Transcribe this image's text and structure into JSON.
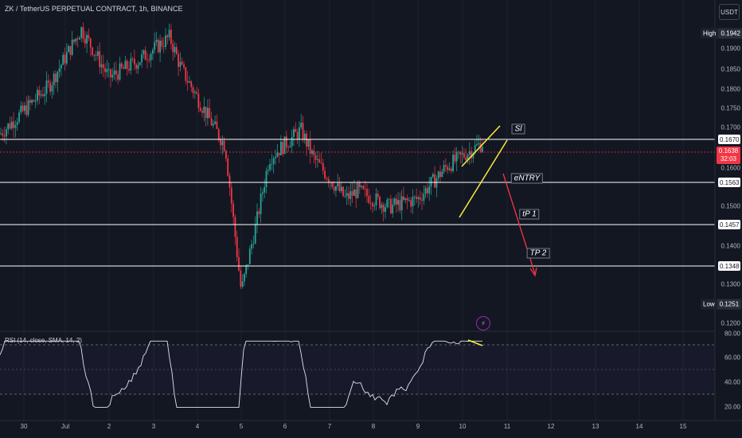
{
  "header": {
    "symbol_title": "ZK / TetherUS PERPETUAL CONTRACT, 1h, BINANCE",
    "currency_button": "USDT"
  },
  "price_axis": {
    "ticks": [
      "0.1900",
      "0.1850",
      "0.1800",
      "0.1750",
      "0.1700",
      "0.1600",
      "0.1500",
      "0.1400",
      "0.1300",
      "0.1200"
    ]
  },
  "high_tag": {
    "label": "High",
    "value": "0.1942"
  },
  "low_tag": {
    "label": "Low",
    "value": "0.1251"
  },
  "level_tags": [
    "0.1670",
    "0.1563",
    "0.1457",
    "0.1348"
  ],
  "last_price": {
    "value": "0.1638",
    "countdown": "32:03"
  },
  "annotations": {
    "sl": "Sl",
    "entry": "eNTRY",
    "tp1": "tP 1",
    "tp2": "TP 2"
  },
  "rsi": {
    "title": "RSI (14, close, SMA, 14, 2)",
    "axis": [
      "80.00",
      "60.00",
      "40.00",
      "20.00"
    ]
  },
  "time_axis": [
    "30",
    "Jul",
    "2",
    "3",
    "4",
    "5",
    "6",
    "7",
    "8",
    "9",
    "10",
    "11",
    "12",
    "13",
    "14",
    "15"
  ],
  "colors": {
    "up": "#26a69a",
    "down": "#f23645",
    "level_line": "#ffffff",
    "channel": "#ffeb3b",
    "arrow": "#f23645",
    "rsi_line": "#e0e3eb"
  },
  "chart_data": {
    "type": "candlestick",
    "title": "ZK / TetherUS PERPETUAL CONTRACT, 1h, BINANCE",
    "ylim": [
      0.118,
      0.196
    ],
    "approx_close_path": [
      {
        "x": "Jun 30",
        "y": 0.166
      },
      {
        "x": "Jul 1",
        "y": 0.178
      },
      {
        "x": "Jul 1",
        "y": 0.192
      },
      {
        "x": "Jul 2",
        "y": 0.18
      },
      {
        "x": "Jul 3",
        "y": 0.184
      },
      {
        "x": "Jul 3",
        "y": 0.19
      },
      {
        "x": "Jul 4",
        "y": 0.182
      },
      {
        "x": "Jul 4",
        "y": 0.168
      },
      {
        "x": "Jul 5",
        "y": 0.163
      },
      {
        "x": "Jul 5",
        "y": 0.127
      },
      {
        "x": "Jul 5",
        "y": 0.145
      },
      {
        "x": "Jul 6",
        "y": 0.16
      },
      {
        "x": "Jul 6",
        "y": 0.167
      },
      {
        "x": "Jul 7",
        "y": 0.16
      },
      {
        "x": "Jul 7",
        "y": 0.15
      },
      {
        "x": "Jul 8",
        "y": 0.152
      },
      {
        "x": "Jul 8",
        "y": 0.148
      },
      {
        "x": "Jul 9",
        "y": 0.15
      },
      {
        "x": "Jul 10",
        "y": 0.158
      },
      {
        "x": "Jul 10",
        "y": 0.1638
      }
    ],
    "horizontal_levels": [
      0.167,
      0.1563,
      0.1457,
      0.1348
    ],
    "high": 0.1942,
    "low": 0.1251
  }
}
